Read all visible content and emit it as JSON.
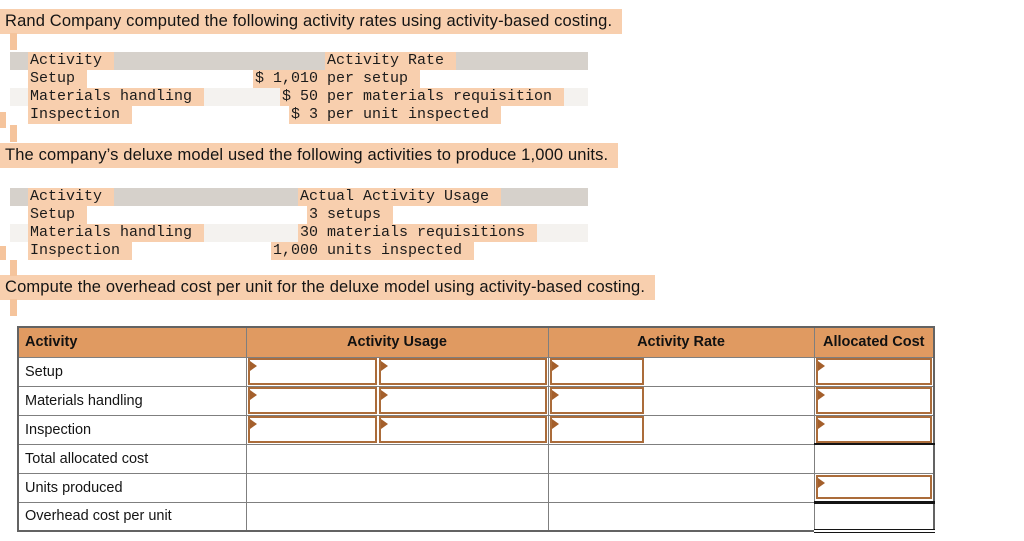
{
  "colors": {
    "highlight": "#f8cfae",
    "artifact": "#f5c49c",
    "answer_header_bg": "#e09a61",
    "input_border": "#ab6c3a",
    "flag": "#a45f2b",
    "mono_header_bg": "#d6d1cb",
    "mono_stripe_bg": "#f4f2ef",
    "grid_border": "#7f7f7f",
    "rule_black": "#141414"
  },
  "paragraphs": {
    "intro": "Rand Company computed the following activity rates using activity-based costing.",
    "usage_intro": "The company’s deluxe model used the following activities to produce 1,000 units.",
    "task": "Compute the overhead cost per unit for the deluxe model using activity-based costing."
  },
  "rate_table": {
    "header": {
      "activity": "Activity",
      "value": "Activity Rate"
    },
    "rows": [
      {
        "label": "Setup",
        "value": "$ 1,010",
        "unit": "per setup"
      },
      {
        "label": "Materials handling",
        "value": "$ 50",
        "unit": "per materials requisition"
      },
      {
        "label": "Inspection",
        "value": "$ 3",
        "unit": "per unit inspected"
      }
    ]
  },
  "usage_table": {
    "header": {
      "activity": "Activity",
      "value": "Actual Activity Usage"
    },
    "rows": [
      {
        "label": "Setup",
        "value": "3",
        "unit": "setups"
      },
      {
        "label": "Materials handling",
        "value": "30",
        "unit": "materials requisitions"
      },
      {
        "label": "Inspection",
        "value": "1,000",
        "unit": "units inspected"
      }
    ]
  },
  "answer_table": {
    "headers": [
      "Activity",
      "Activity Usage",
      "Activity Rate",
      "Allocated Cost"
    ],
    "rows": [
      {
        "label": "Setup",
        "kind": "activity",
        "usage_qty": "",
        "usage_unit": "",
        "rate": "",
        "allocated": ""
      },
      {
        "label": "Materials handling",
        "kind": "activity",
        "usage_qty": "",
        "usage_unit": "",
        "rate": "",
        "allocated": ""
      },
      {
        "label": "Inspection",
        "kind": "activity",
        "usage_qty": "",
        "usage_unit": "",
        "rate": "",
        "allocated": ""
      },
      {
        "label": "Total allocated cost",
        "kind": "total",
        "allocated": ""
      },
      {
        "label": "Units produced",
        "kind": "units",
        "allocated": ""
      },
      {
        "label": "Overhead cost per unit",
        "kind": "result",
        "allocated": ""
      }
    ]
  }
}
